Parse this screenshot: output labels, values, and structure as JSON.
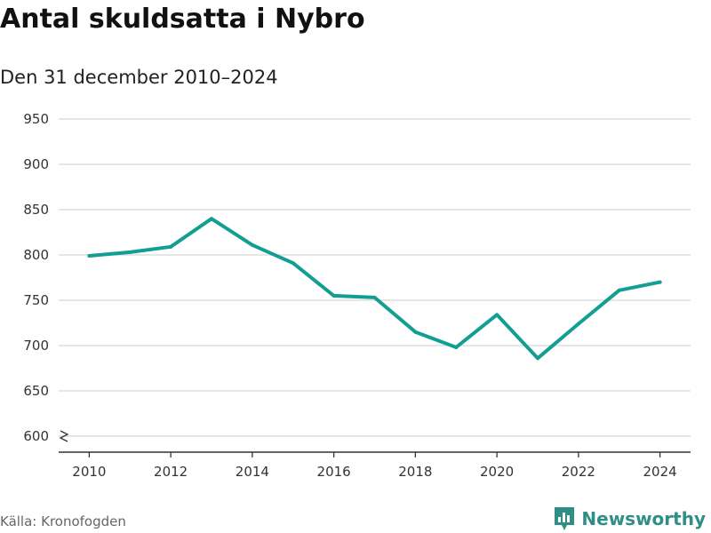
{
  "header": {
    "title": "Antal skuldsatta i Nybro",
    "subtitle": "Den 31 december 2010–2024"
  },
  "footer": {
    "source": "Källa: Kronofogden",
    "brand": "Newsworthy",
    "brand_icon": "newsworthy-logo-icon"
  },
  "colors": {
    "line": "#139e94",
    "grid": "#dddddd",
    "axis": "#333333",
    "brand": "#2f8f86"
  },
  "chart_data": {
    "type": "line",
    "title": "Antal skuldsatta i Nybro",
    "subtitle": "Den 31 december 2010–2024",
    "xlabel": "",
    "ylabel": "",
    "x": [
      2010,
      2011,
      2012,
      2013,
      2014,
      2015,
      2016,
      2017,
      2018,
      2019,
      2020,
      2021,
      2022,
      2023,
      2024
    ],
    "series": [
      {
        "values": [
          799,
          803,
          809,
          840,
          811,
          791,
          755,
          753,
          715,
          698,
          734,
          686,
          724,
          761,
          770
        ]
      }
    ],
    "xlim": [
      2009.25,
      2024.75
    ],
    "ylim": [
      600,
      950
    ],
    "yticks": [
      600,
      650,
      700,
      750,
      800,
      850,
      900,
      950
    ],
    "xticks": [
      2010,
      2012,
      2014,
      2016,
      2018,
      2020,
      2022,
      2024
    ],
    "axis_break": true,
    "grid": true,
    "legend": "none"
  }
}
